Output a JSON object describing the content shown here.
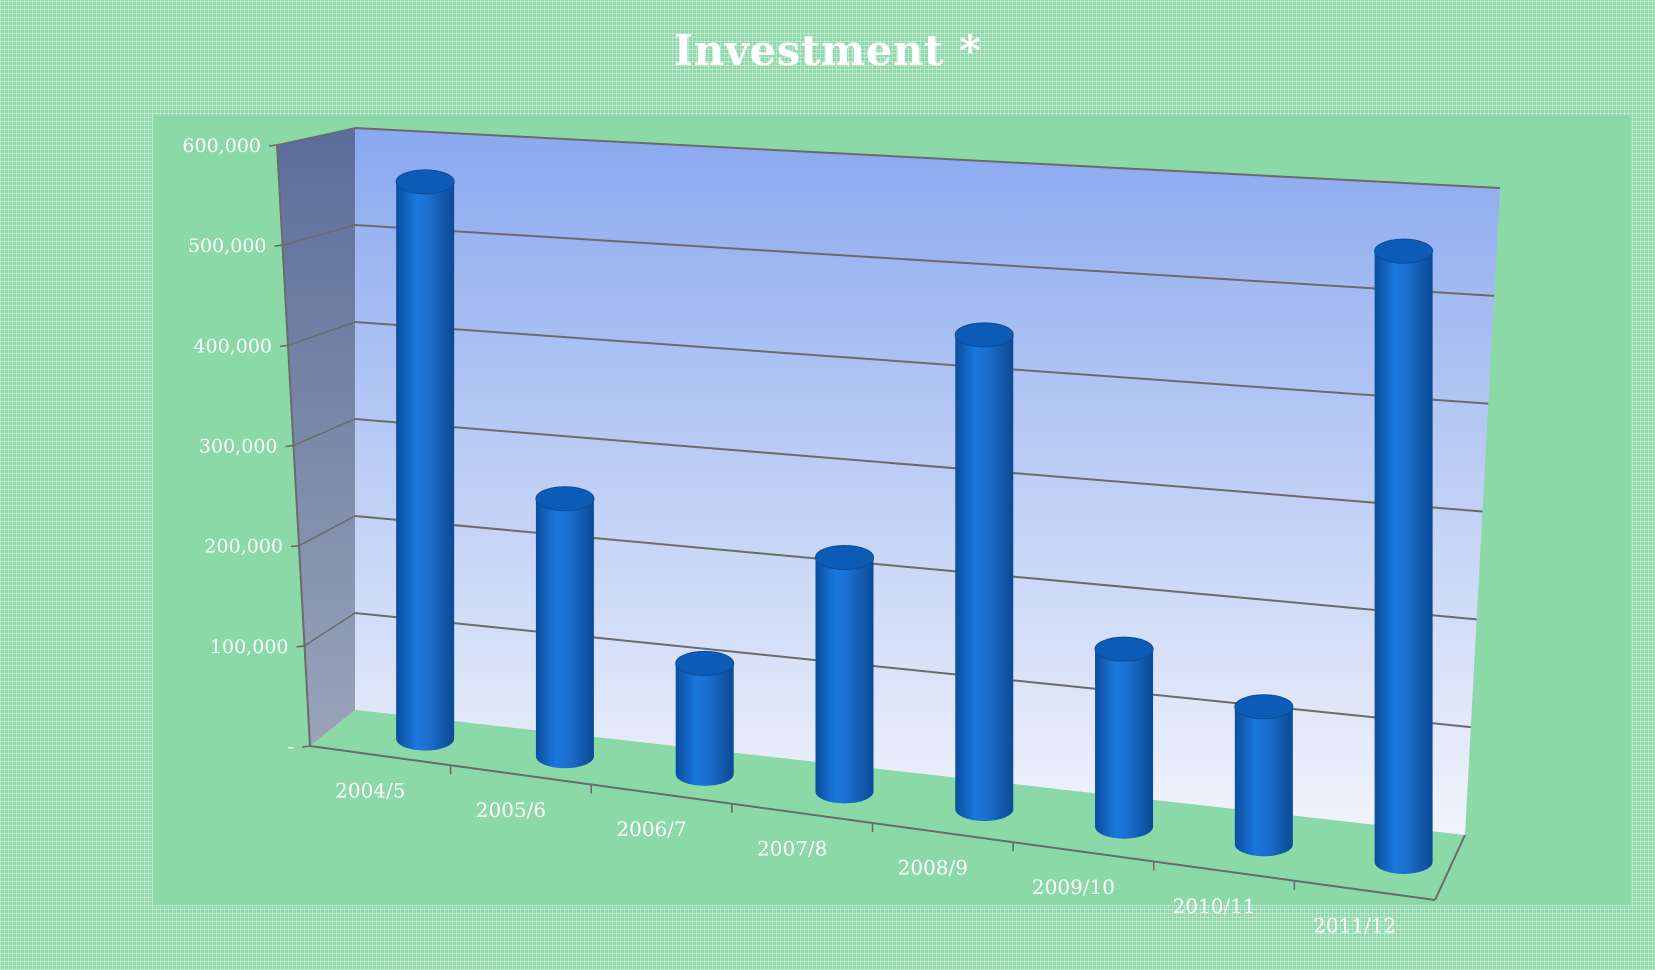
{
  "chart_data": {
    "type": "bar",
    "title": "Investment *",
    "categories": [
      "2004/5",
      "2005/6",
      "2006/7",
      "2007/8",
      "2008/9",
      "2009/10",
      "2010/11",
      "2011/12"
    ],
    "values": [
      570000,
      260000,
      110000,
      230000,
      460000,
      170000,
      130000,
      570000
    ],
    "ylim": [
      0,
      600000
    ],
    "yticks": [
      {
        "value": 0,
        "label": "-"
      },
      {
        "value": 100000,
        "label": "100,000"
      },
      {
        "value": 200000,
        "label": "200,000"
      },
      {
        "value": 300000,
        "label": "300,000"
      },
      {
        "value": 400000,
        "label": "400,000"
      },
      {
        "value": 500000,
        "label": "500,000"
      },
      {
        "value": 600000,
        "label": "600,000"
      }
    ],
    "grid": true,
    "colors": {
      "bar": "#1467c8",
      "back_wall_top": "#8eaaee",
      "back_wall_bottom": "#eef1fb",
      "floor": "#8cd9a8"
    }
  }
}
